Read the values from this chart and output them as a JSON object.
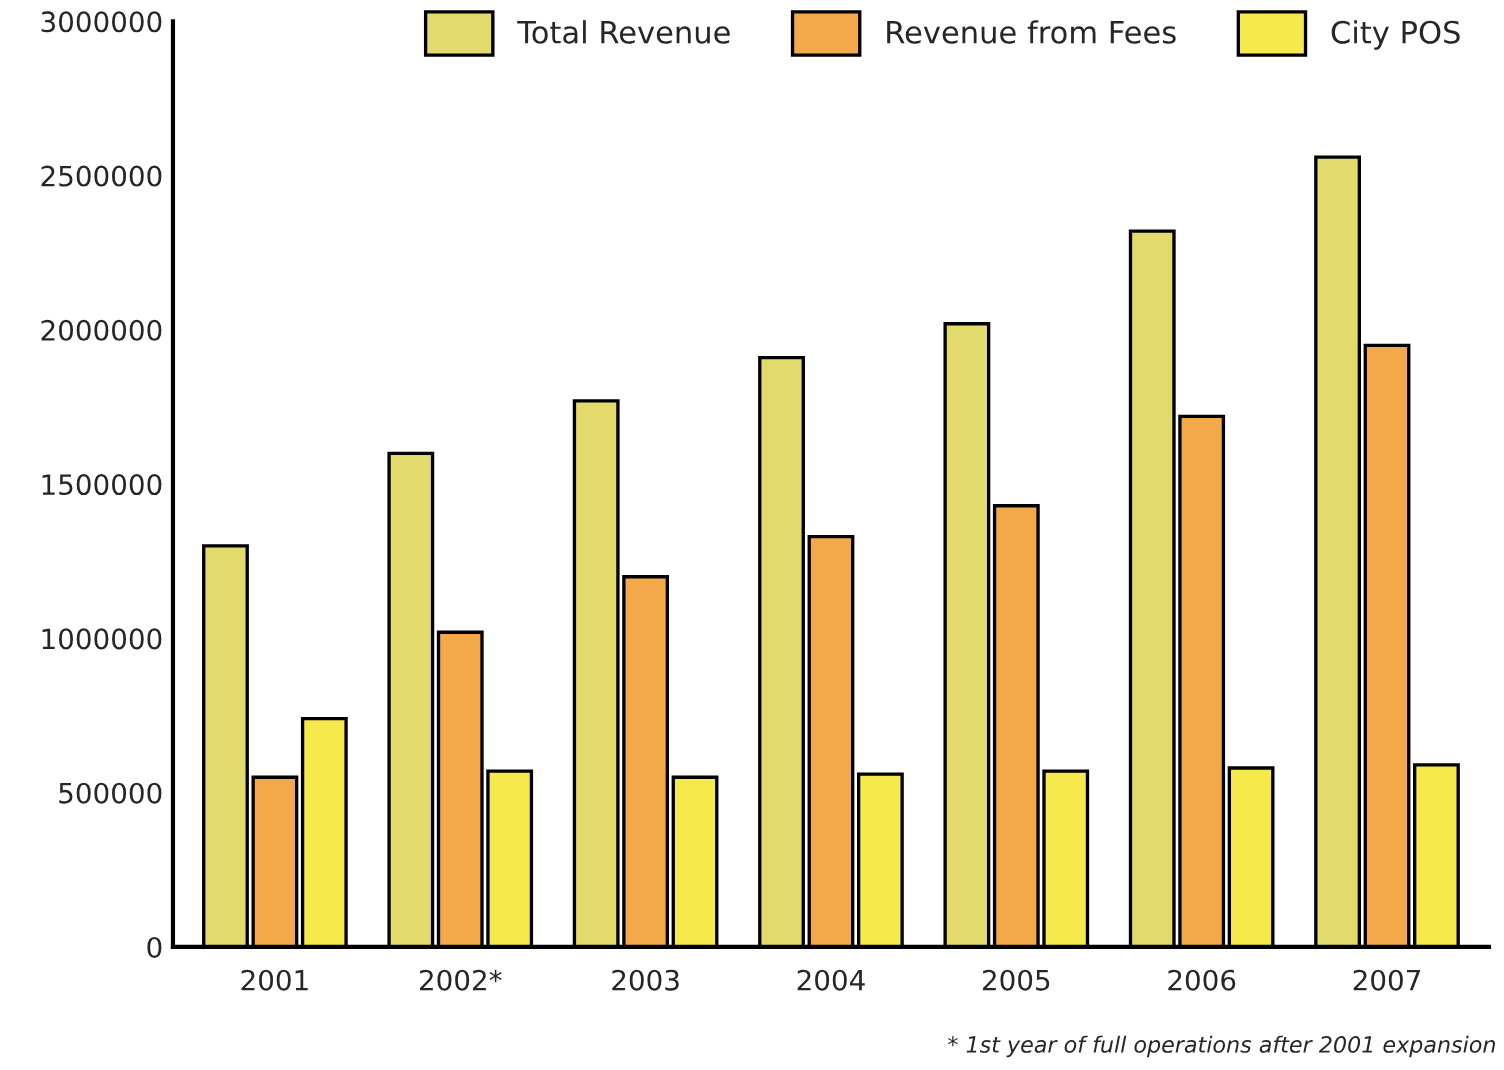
{
  "chart_data": {
    "type": "bar",
    "categories": [
      "2001",
      "2002*",
      "2003",
      "2004",
      "2005",
      "2006",
      "2007"
    ],
    "series": [
      {
        "name": "Total Revenue",
        "color": "#e3da6c",
        "values": [
          1300000,
          1600000,
          1770000,
          1910000,
          2020000,
          2320000,
          2560000
        ]
      },
      {
        "name": "Revenue from Fees",
        "color": "#f3a84a",
        "values": [
          550000,
          1020000,
          1200000,
          1330000,
          1430000,
          1720000,
          1950000
        ]
      },
      {
        "name": "City POS",
        "color": "#f6e94c",
        "values": [
          740000,
          570000,
          550000,
          560000,
          570000,
          580000,
          590000
        ]
      }
    ],
    "ylim": [
      0,
      3000000
    ],
    "yticks": [
      0,
      500000,
      1000000,
      1500000,
      2000000,
      2500000,
      3000000
    ],
    "grid": false,
    "legend": "top right",
    "annotations": [
      "* 1st year of full operations after 2001 expansion"
    ]
  }
}
